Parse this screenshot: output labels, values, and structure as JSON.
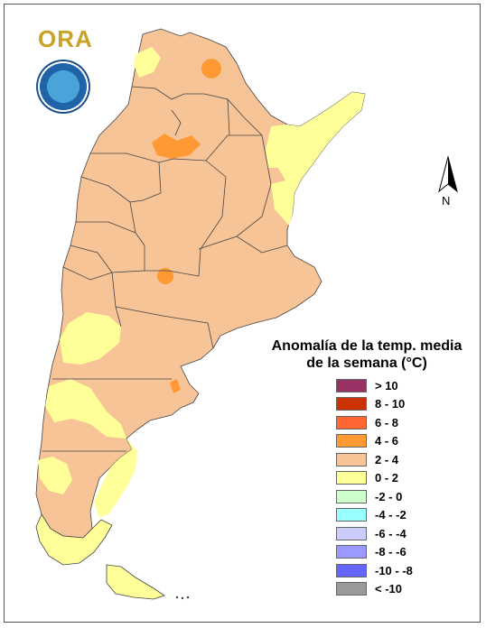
{
  "logo": {
    "text": "ORA"
  },
  "north_label": "N",
  "legend": {
    "title_line1": "Anomalía de la temp. media",
    "title_line2": "de la semana (°C)",
    "items": [
      {
        "label": "> 10",
        "color": "#993366"
      },
      {
        "label": "8 - 10",
        "color": "#cc3300"
      },
      {
        "label": "6 - 8",
        "color": "#ff6633"
      },
      {
        "label": "4 - 6",
        "color": "#ff9933"
      },
      {
        "label": "2 - 4",
        "color": "#f7c497"
      },
      {
        "label": "0 - 2",
        "color": "#ffff99"
      },
      {
        "label": "-2 - 0",
        "color": "#ccffcc"
      },
      {
        "label": "-4 - -2",
        "color": "#99ffff"
      },
      {
        "label": "-6 - -4",
        "color": "#ccccff"
      },
      {
        "label": "-8 - -6",
        "color": "#9999ff"
      },
      {
        "label": "-10 - -8",
        "color": "#6666ff"
      },
      {
        "label": "< -10",
        "color": "#999999"
      }
    ]
  },
  "colors": {
    "anom_2_4": "#f7c497",
    "anom_0_2": "#ffff99",
    "anom_4_6": "#ff9933",
    "border": "#444444"
  }
}
